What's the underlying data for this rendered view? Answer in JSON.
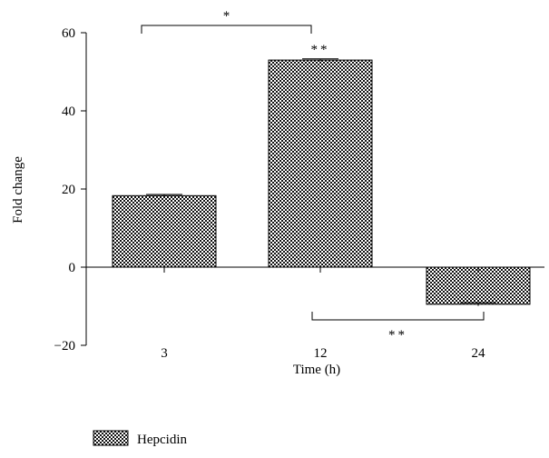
{
  "chart_data": {
    "type": "bar",
    "ylabel": "Fold change",
    "xlabel": "Time (h)",
    "categories": [
      "3",
      "12",
      "24"
    ],
    "series": [
      {
        "name": "Hepcidin",
        "values": [
          18.3,
          53,
          -9.5
        ],
        "errors": [
          0.3,
          0.3,
          0.4
        ]
      }
    ],
    "ylim": [
      -20,
      60
    ],
    "yticks": [
      -20,
      0,
      20,
      40,
      60
    ],
    "ytick_labels": [
      "−20",
      "0",
      "20",
      "40",
      "60"
    ],
    "bar_labels": [
      "",
      "**",
      ""
    ],
    "significance": [
      {
        "from": 0,
        "to": 1,
        "label": "*",
        "position": "above"
      },
      {
        "from": 1,
        "to": 2,
        "label": "**",
        "position": "below"
      }
    ],
    "legend_position": "bottom-left",
    "grid": false
  }
}
